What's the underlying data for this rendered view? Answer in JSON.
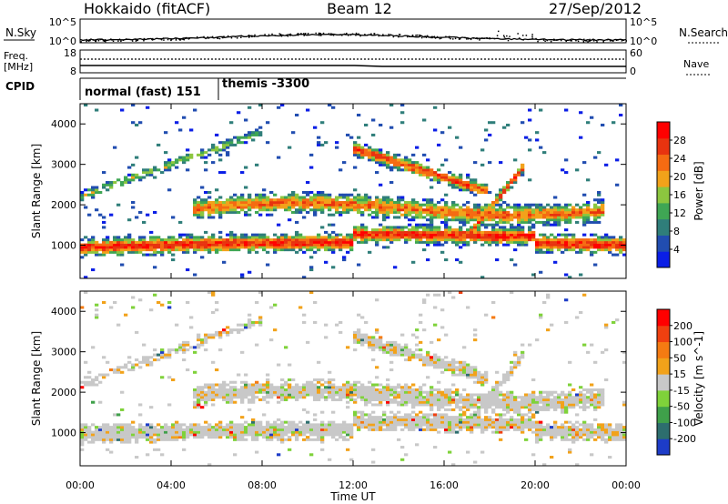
{
  "header": {
    "station": "Hokkaido (fitACF)",
    "beam": "Beam 12",
    "date": "27/Sep/2012"
  },
  "noise_panel": {
    "left_label": "N.Sky",
    "right_label": "N.Search",
    "left_ticks": [
      "10^5",
      "10^0"
    ],
    "right_ticks": [
      "10^5",
      "10^0"
    ]
  },
  "freq_panel": {
    "left_label_1": "Freq.",
    "left_label_2": "[MHz]",
    "right_label": "Nave",
    "left_ticks": [
      "18",
      "8"
    ],
    "right_ticks": [
      "60",
      "0"
    ]
  },
  "cpid_panel": {
    "label": "CPID",
    "modes": [
      {
        "name": "normal (fast) 151",
        "start_hour": 0,
        "end_hour": 6.1
      },
      {
        "name": "themis -3300",
        "start_hour": 6.1,
        "end_hour": 24
      }
    ]
  },
  "chart_data": [
    {
      "type": "heatmap",
      "title": "",
      "ylabel": "Slant Range [km]",
      "xlabel": "",
      "ylim": [
        180,
        4500
      ],
      "yticks": [
        "1000",
        "2000",
        "3000",
        "4000"
      ],
      "colorbar": {
        "label": "Power [dB]",
        "ticks": [
          "4",
          "8",
          "12",
          "16",
          "20",
          "24",
          "28"
        ],
        "colors": [
          "#0a1ee6",
          "#214db0",
          "#2f7e7a",
          "#3fa654",
          "#8cc63f",
          "#f2a21a",
          "#f56b12",
          "#e8330f",
          "#ff0000"
        ]
      }
    },
    {
      "type": "heatmap",
      "title": "",
      "ylabel": "Slant Range [km]",
      "xlabel": "Time UT",
      "ylim": [
        180,
        4500
      ],
      "yticks": [
        "1000",
        "2000",
        "3000",
        "4000"
      ],
      "xticks": [
        "00:00",
        "04:00",
        "08:00",
        "12:00",
        "16:00",
        "20:00",
        "00:00"
      ],
      "colorbar": {
        "label": "Velocity [m s^-1]",
        "ticks": [
          "200",
          "100",
          "50",
          "15",
          "-15",
          "-50",
          "-100",
          "-200"
        ],
        "colors": [
          "#1d3cc8",
          "#2d6e6e",
          "#3fa04a",
          "#7fd23a",
          "#c8c8c8",
          "#f2a21a",
          "#f57b12",
          "#f04010",
          "#ff0000"
        ]
      }
    }
  ]
}
